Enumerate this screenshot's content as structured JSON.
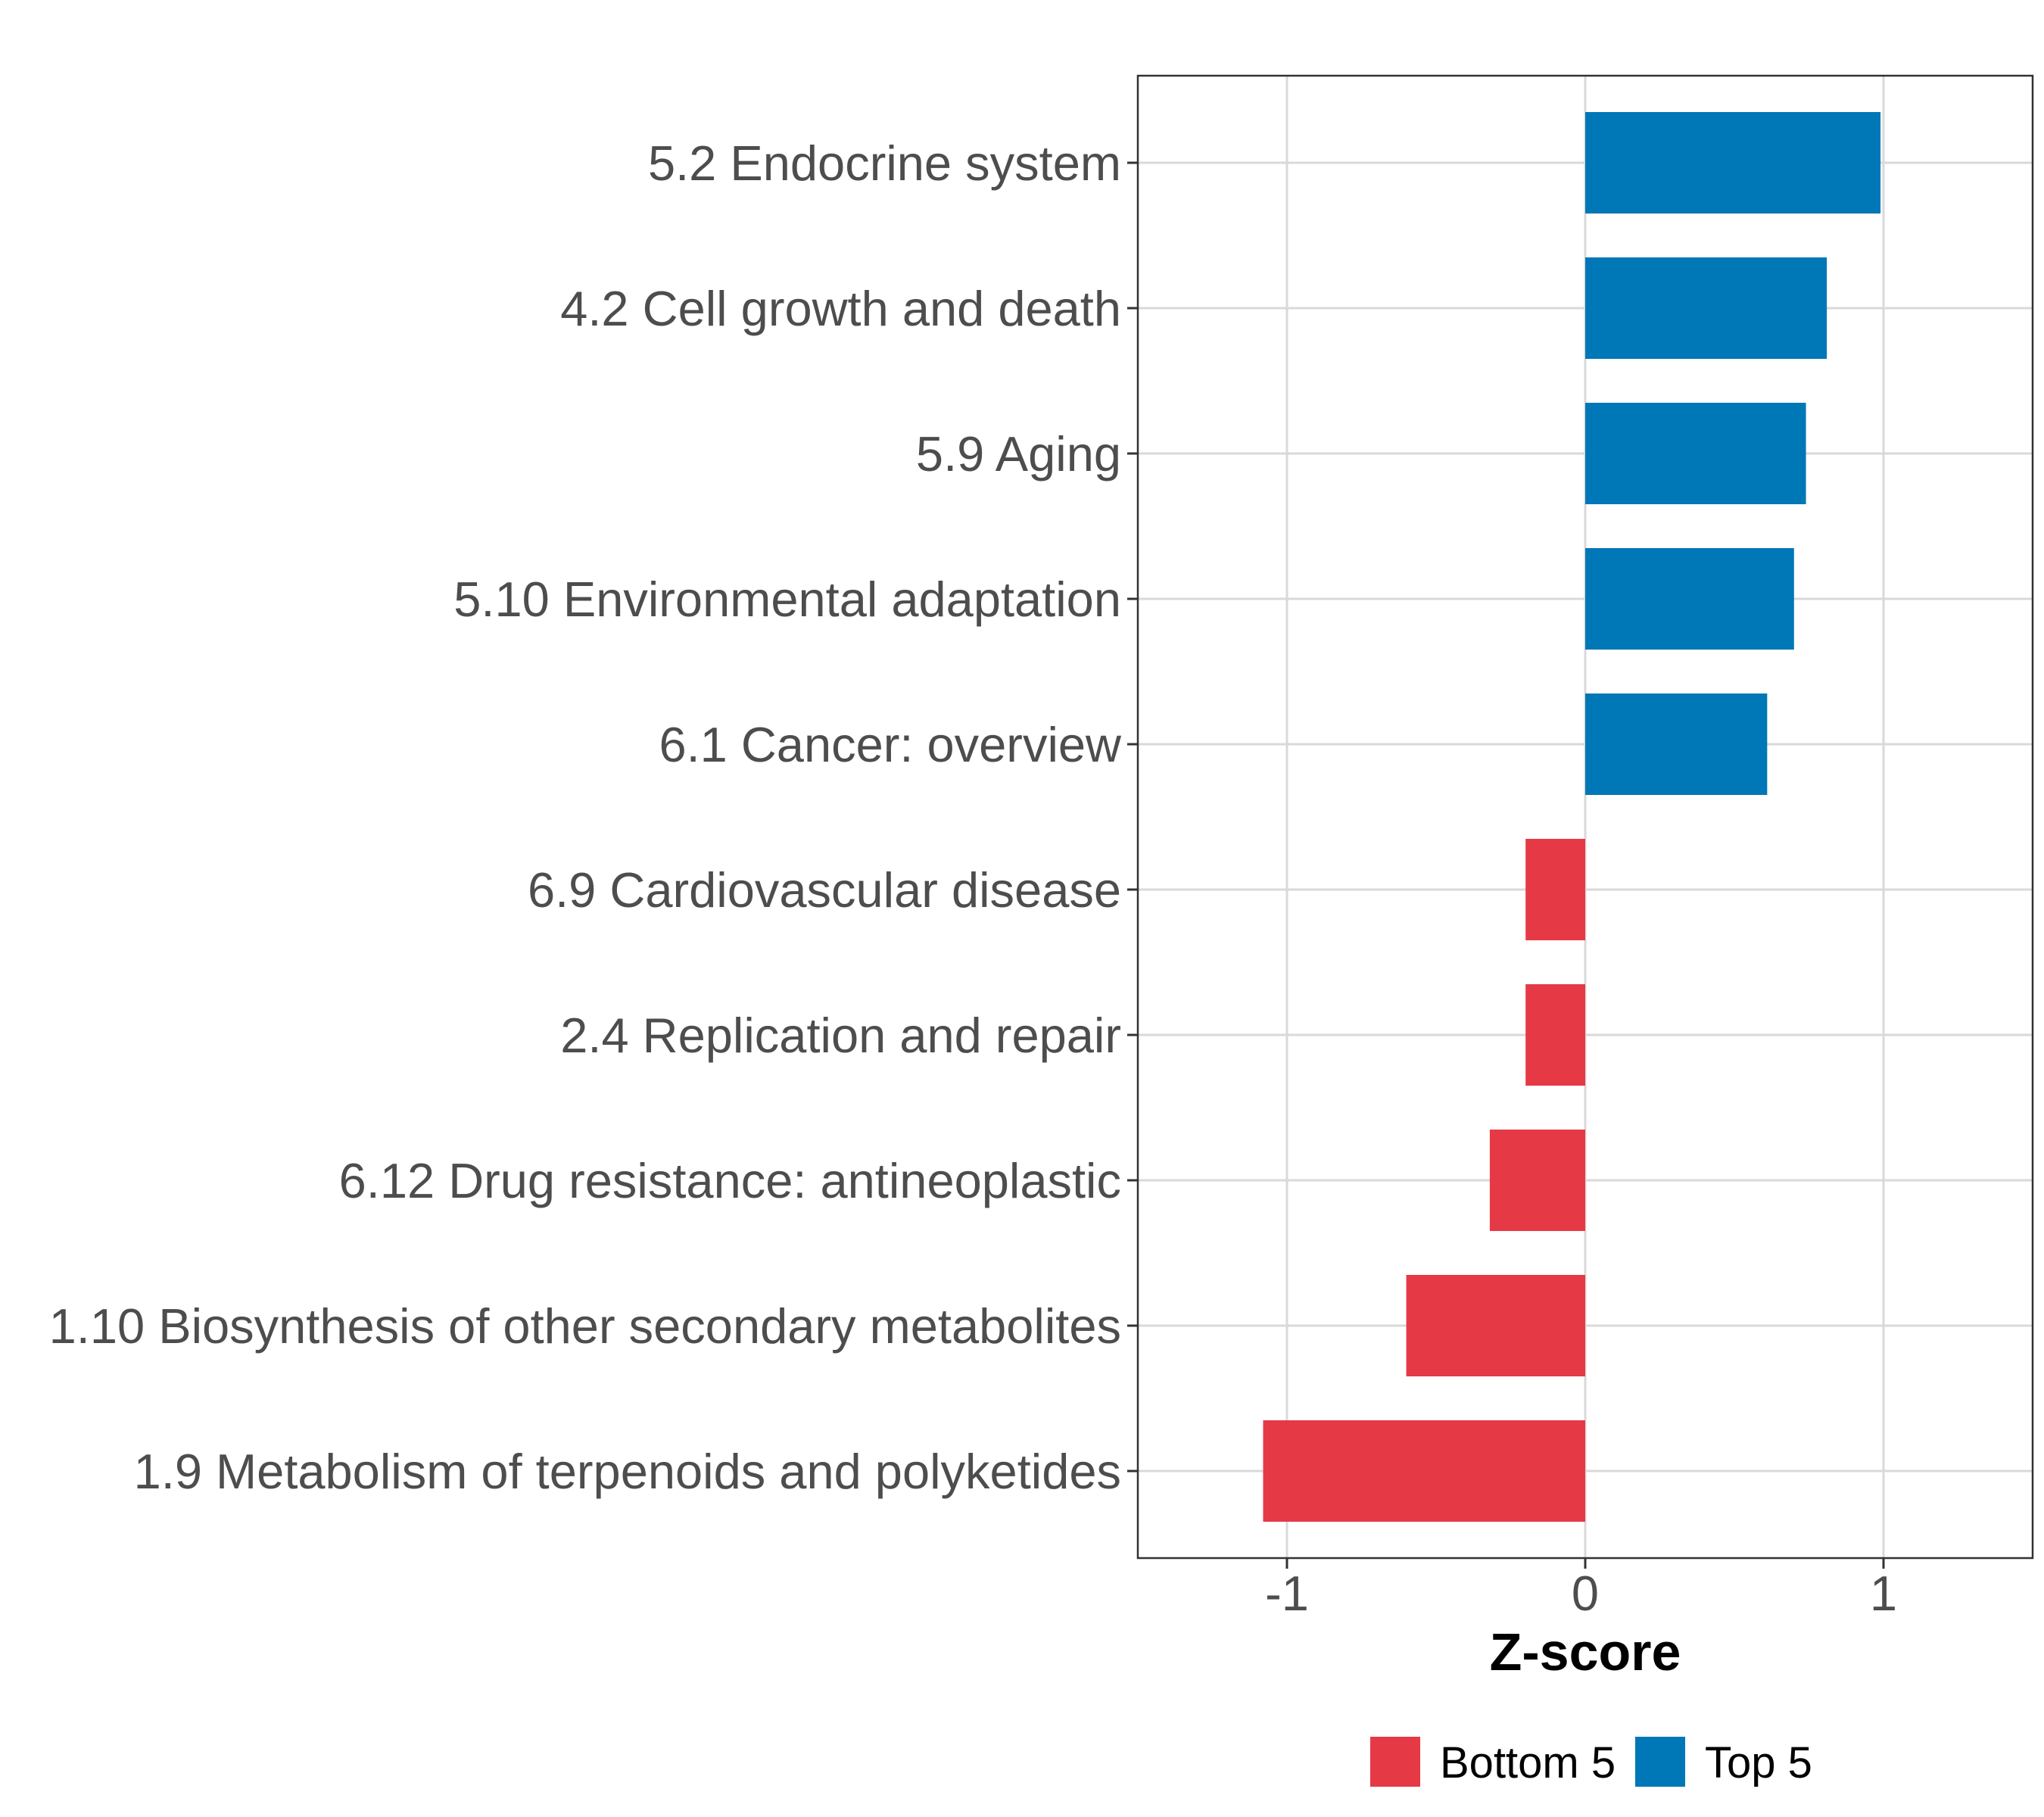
{
  "chart_data": {
    "type": "bar",
    "orientation": "horizontal",
    "title": "",
    "xlabel": "Z-score",
    "ylabel": "",
    "xlim": [
      -1.5,
      1.5
    ],
    "xticks": [
      -1,
      0,
      1
    ],
    "xtick_labels": [
      "-1",
      "0",
      "1"
    ],
    "grid": true,
    "legend_position": "bottom",
    "categories": [
      "5.2 Endocrine system",
      "4.2 Cell growth and death",
      "5.9 Aging",
      "5.10 Environmental adaptation",
      "6.1 Cancer: overview",
      "6.9 Cardiovascular disease",
      "2.4 Replication and repair",
      "6.12 Drug resistance: antineoplastic",
      "1.10 Biosynthesis of other secondary metabolites",
      "1.9 Metabolism of terpenoids and polyketides"
    ],
    "values": [
      0.99,
      0.81,
      0.74,
      0.7,
      0.61,
      -0.2,
      -0.2,
      -0.32,
      -0.6,
      -1.08
    ],
    "groups": [
      "Top 5",
      "Top 5",
      "Top 5",
      "Top 5",
      "Top 5",
      "Bottom 5",
      "Bottom 5",
      "Bottom 5",
      "Bottom 5",
      "Bottom 5"
    ],
    "legend": [
      {
        "name": "Bottom 5",
        "color": "#e63946"
      },
      {
        "name": "Top 5",
        "color": "#0077b6"
      }
    ]
  }
}
